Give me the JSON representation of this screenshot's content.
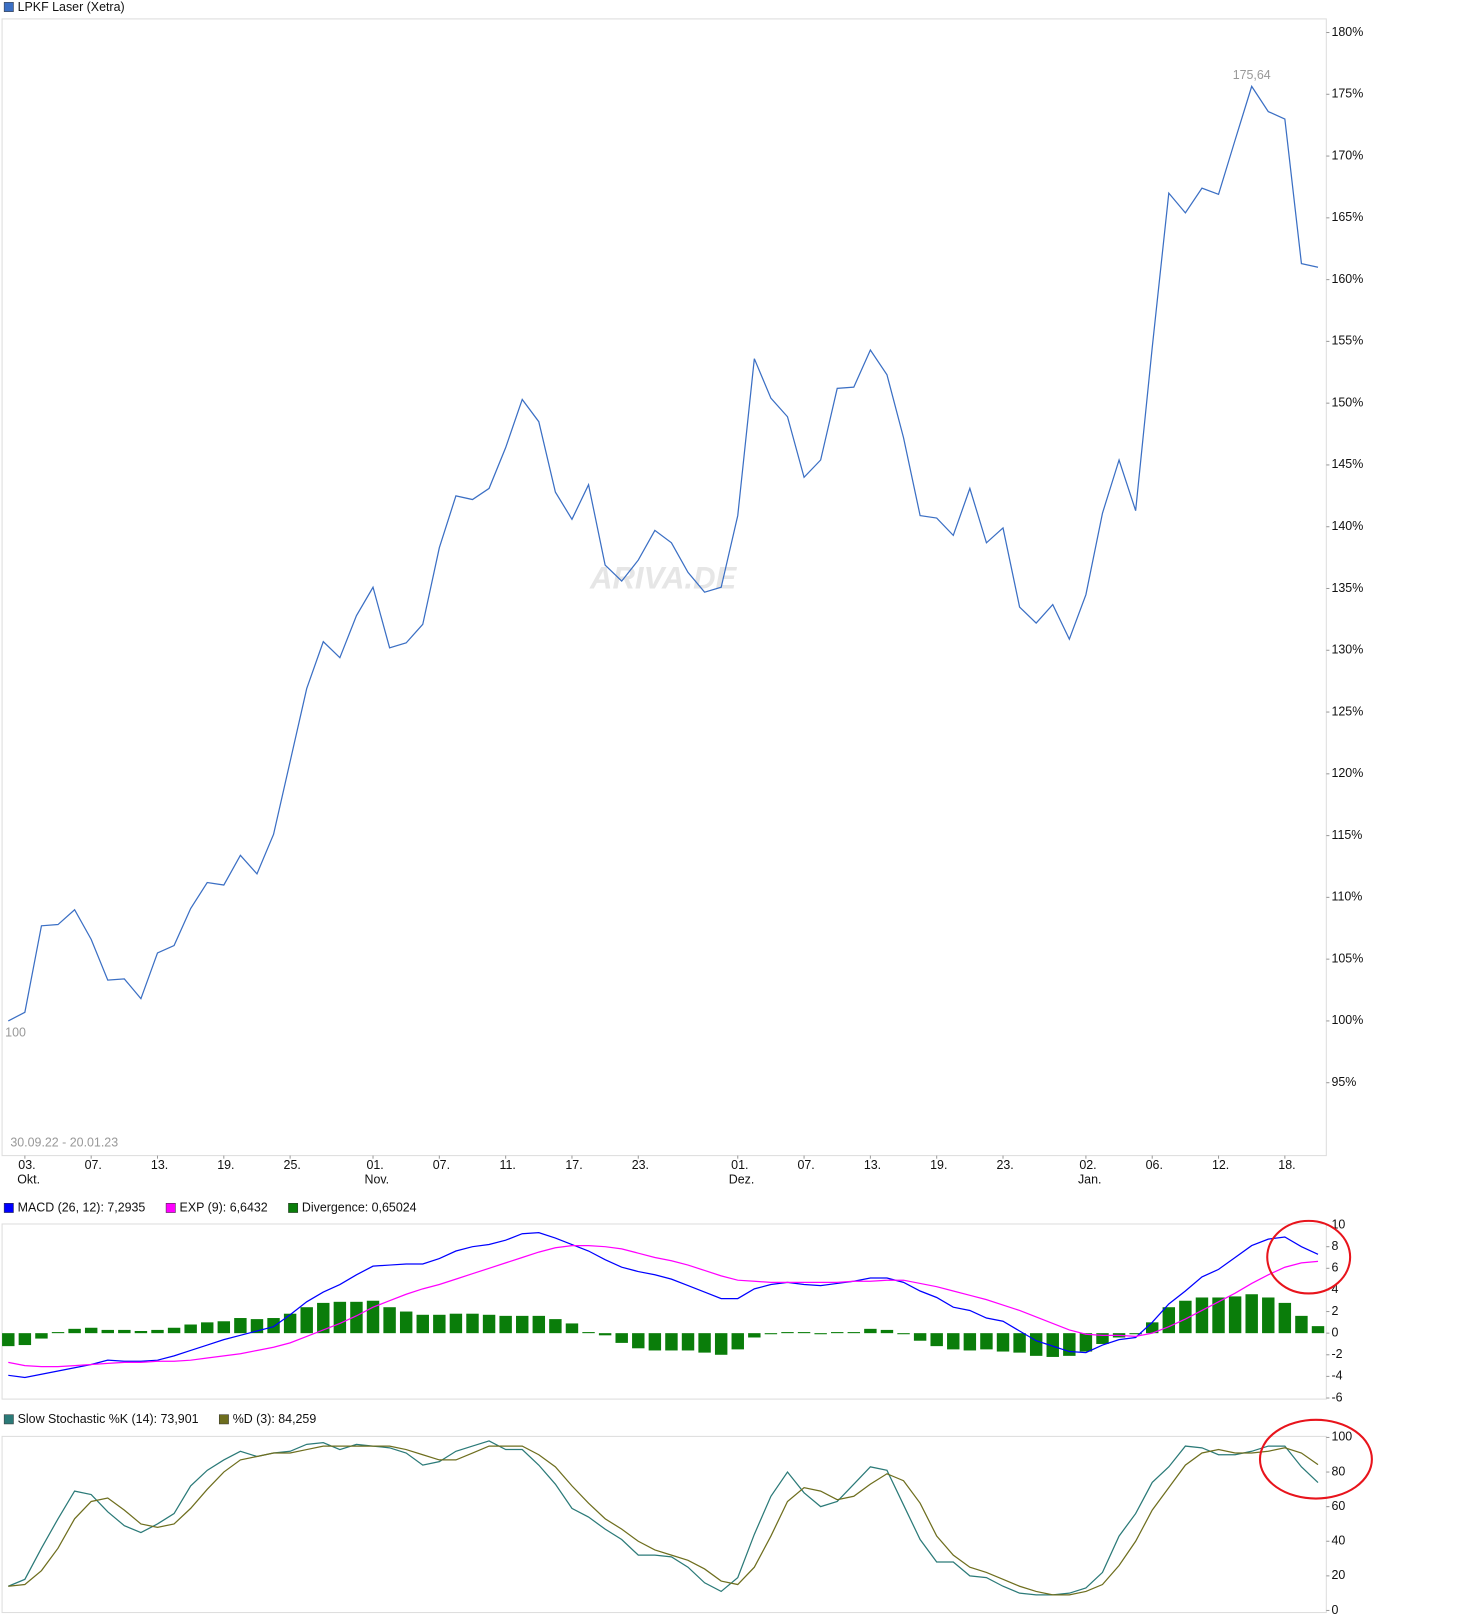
{
  "chart_data": [
    {
      "type": "line",
      "title": "LPKF Laser (Xetra)",
      "color": "#3b6fc4",
      "annotations": [
        "175,64",
        "100",
        "30.09.22 - 20.01.23"
      ],
      "watermark": "ARIVA.DE",
      "categories": [
        null,
        "03.\nOkt.",
        null,
        null,
        null,
        "07.",
        null,
        null,
        null,
        "13.",
        null,
        null,
        null,
        "19.",
        null,
        null,
        null,
        "25.",
        null,
        null,
        null,
        null,
        "01.\nNov.",
        null,
        null,
        null,
        "07.",
        null,
        null,
        null,
        "11.",
        null,
        null,
        null,
        "17.",
        null,
        null,
        null,
        "23.",
        null,
        null,
        null,
        null,
        null,
        "01.\nDez.",
        null,
        null,
        null,
        "07.",
        null,
        null,
        null,
        "13.",
        null,
        null,
        null,
        "19.",
        null,
        null,
        null,
        "23.",
        null,
        null,
        null,
        null,
        "02.\nJan.",
        null,
        null,
        null,
        "06.",
        null,
        null,
        null,
        "12.",
        null,
        null,
        null,
        "18.",
        null,
        null
      ],
      "values": [
        100,
        100.7,
        107.7,
        107.8,
        109.0,
        106.6,
        103.3,
        103.4,
        101.8,
        105.5,
        106.1,
        109.1,
        111.2,
        111.0,
        113.4,
        111.9,
        115.1,
        121.0,
        126.9,
        130.7,
        129.4,
        132.8,
        135.1,
        130.2,
        130.6,
        132.1,
        138.3,
        142.5,
        142.2,
        143.1,
        146.4,
        150.3,
        148.5,
        142.8,
        140.6,
        143.4,
        136.9,
        135.6,
        137.3,
        139.7,
        138.7,
        136.3,
        134.7,
        135.1,
        140.9,
        153.6,
        150.4,
        148.9,
        144.0,
        145.4,
        151.2,
        151.3,
        154.3,
        152.3,
        147.2,
        140.9,
        140.7,
        139.3,
        143.1,
        138.7,
        139.9,
        133.5,
        132.2,
        133.7,
        130.9,
        134.5,
        141.1,
        145.4,
        141.3,
        154.5,
        167.0,
        165.4,
        167.4,
        166.9,
        171.3,
        175.64,
        173.6,
        173.0,
        161.3,
        161.0
      ],
      "ylim": [
        89.1,
        181.1
      ],
      "yticks": [
        {
          "value": 180,
          "label": "180%"
        },
        {
          "value": 175,
          "label": "175%"
        },
        {
          "value": 170,
          "label": "170%"
        },
        {
          "value": 165,
          "label": "165%"
        },
        {
          "value": 160,
          "label": "160%"
        },
        {
          "value": 155,
          "label": "155%"
        },
        {
          "value": 150,
          "label": "150%"
        },
        {
          "value": 145,
          "label": "145%"
        },
        {
          "value": 140,
          "label": "140%"
        },
        {
          "value": 135,
          "label": "135%"
        },
        {
          "value": 130,
          "label": "130%"
        },
        {
          "value": 125,
          "label": "125%"
        },
        {
          "value": 120,
          "label": "120%"
        },
        {
          "value": 115,
          "label": "115%"
        },
        {
          "value": 110,
          "label": "110%"
        },
        {
          "value": 105,
          "label": "105%"
        },
        {
          "value": 100,
          "label": "100%"
        },
        {
          "value": 95,
          "label": "95%"
        }
      ],
      "grid": false
    },
    {
      "type": "line",
      "ylim": [
        -6.1,
        10.1
      ],
      "yticks": [
        10,
        8,
        6,
        4,
        2,
        0,
        -2,
        -4,
        -6
      ],
      "grid": false,
      "series": [
        {
          "name": "MACD (26, 12): 7,2935",
          "color": "#0000ff",
          "values": [
            -3.9,
            -4.1,
            -3.8,
            -3.5,
            -3.2,
            -2.9,
            -2.5,
            -2.6,
            -2.6,
            -2.5,
            -2.1,
            -1.6,
            -1.1,
            -0.6,
            -0.2,
            0.2,
            0.6,
            1.7,
            2.9,
            3.8,
            4.5,
            5.4,
            6.2,
            6.3,
            6.4,
            6.4,
            6.9,
            7.6,
            8.0,
            8.2,
            8.6,
            9.2,
            9.3,
            8.8,
            8.2,
            7.6,
            6.8,
            6.1,
            5.7,
            5.4,
            5.0,
            4.4,
            3.8,
            3.2,
            3.2,
            4.1,
            4.5,
            4.7,
            4.5,
            4.4,
            4.6,
            4.8,
            5.1,
            5.1,
            4.7,
            3.9,
            3.3,
            2.4,
            2.1,
            1.4,
            1.1,
            0.2,
            -0.7,
            -1.2,
            -1.7,
            -1.8,
            -1.1,
            -0.6,
            -0.4,
            1.0,
            2.7,
            3.9,
            5.2,
            5.9,
            7.0,
            8.1,
            8.7,
            8.9,
            8.0,
            7.2935
          ]
        },
        {
          "name": "EXP (9): 6,6432",
          "color": "#ff00ff",
          "values": [
            -2.7,
            -3.0,
            -3.1,
            -3.1,
            -3.0,
            -2.9,
            -2.8,
            -2.7,
            -2.7,
            -2.6,
            -2.6,
            -2.5,
            -2.3,
            -2.1,
            -1.9,
            -1.6,
            -1.3,
            -0.9,
            -0.3,
            0.3,
            0.9,
            1.6,
            2.4,
            3.0,
            3.6,
            4.1,
            4.5,
            5.0,
            5.5,
            6.0,
            6.5,
            7.0,
            7.5,
            7.9,
            8.1,
            8.1,
            8.0,
            7.8,
            7.4,
            7.0,
            6.7,
            6.3,
            5.8,
            5.3,
            4.9,
            4.8,
            4.7,
            4.7,
            4.7,
            4.7,
            4.7,
            4.8,
            4.8,
            4.9,
            4.9,
            4.6,
            4.3,
            3.9,
            3.5,
            3.1,
            2.6,
            2.1,
            1.5,
            0.9,
            0.3,
            -0.1,
            -0.2,
            -0.2,
            -0.3,
            0.0,
            0.6,
            1.3,
            2.1,
            2.9,
            3.7,
            4.6,
            5.4,
            6.1,
            6.5,
            6.6432
          ]
        },
        {
          "name": "Divergence: 0,65024",
          "color": "#0a7d0a",
          "type": "bar",
          "values": [
            -1.2,
            -1.1,
            -0.5,
            0.1,
            0.4,
            0.5,
            0.3,
            0.3,
            0.2,
            0.3,
            0.5,
            0.8,
            1.0,
            1.1,
            1.4,
            1.3,
            1.4,
            1.8,
            2.4,
            2.8,
            2.9,
            2.9,
            3.0,
            2.4,
            2.0,
            1.7,
            1.7,
            1.8,
            1.8,
            1.7,
            1.6,
            1.6,
            1.6,
            1.3,
            0.9,
            0.1,
            -0.2,
            -0.9,
            -1.4,
            -1.6,
            -1.6,
            -1.6,
            -1.8,
            -2.0,
            -1.5,
            -0.4,
            -0.1,
            0.1,
            0.1,
            -0.1,
            0.1,
            0.1,
            0.4,
            0.3,
            -0.1,
            -0.7,
            -1.2,
            -1.5,
            -1.6,
            -1.5,
            -1.7,
            -1.8,
            -2.1,
            -2.2,
            -2.1,
            -1.7,
            -1.0,
            -0.4,
            -0.1,
            1.0,
            2.4,
            3.0,
            3.3,
            3.3,
            3.4,
            3.6,
            3.3,
            2.8,
            1.6,
            0.65024
          ]
        }
      ]
    },
    {
      "type": "line",
      "ylim": [
        -1.2,
        100.6
      ],
      "yticks": [
        100,
        80,
        60,
        40,
        20,
        0
      ],
      "grid": false,
      "series": [
        {
          "name": "Slow Stochastic %K (14): 73,901",
          "color": "#2b7a78",
          "values": [
            14,
            18,
            36,
            53,
            69,
            67,
            57,
            49,
            45,
            50,
            56,
            72,
            81,
            87,
            92,
            89,
            91,
            92,
            96,
            97,
            93,
            96,
            95,
            94,
            91,
            84,
            86,
            92,
            95,
            98,
            93,
            93,
            84,
            73,
            59,
            54,
            47,
            41,
            32,
            32,
            31,
            25,
            16,
            11,
            19,
            44,
            66,
            80,
            68,
            60,
            63,
            73,
            83,
            81,
            61,
            41,
            28,
            28,
            20,
            19,
            14,
            10,
            9,
            9,
            10,
            13,
            22,
            43,
            56,
            74,
            83,
            95,
            94,
            90,
            90,
            92,
            95,
            95,
            83,
            73.901
          ]
        },
        {
          "name": "%D (3): 84,259",
          "color": "#6e6e1e",
          "values": [
            14,
            15,
            23,
            36,
            53,
            63,
            65,
            58,
            50,
            48,
            50,
            59,
            70,
            80,
            87,
            89,
            91,
            91,
            93,
            95,
            95,
            95,
            95,
            95,
            93,
            90,
            87,
            87,
            91,
            95,
            95,
            95,
            90,
            83,
            72,
            62,
            53,
            47,
            40,
            35,
            32,
            29,
            24,
            17,
            15,
            25,
            43,
            63,
            71,
            69,
            64,
            66,
            73,
            79,
            75,
            62,
            43,
            32,
            25,
            22,
            18,
            14,
            11,
            9,
            9,
            11,
            15,
            26,
            40,
            58,
            71,
            84,
            91,
            93,
            91,
            91,
            92,
            94,
            91,
            84.259
          ]
        }
      ]
    }
  ]
}
